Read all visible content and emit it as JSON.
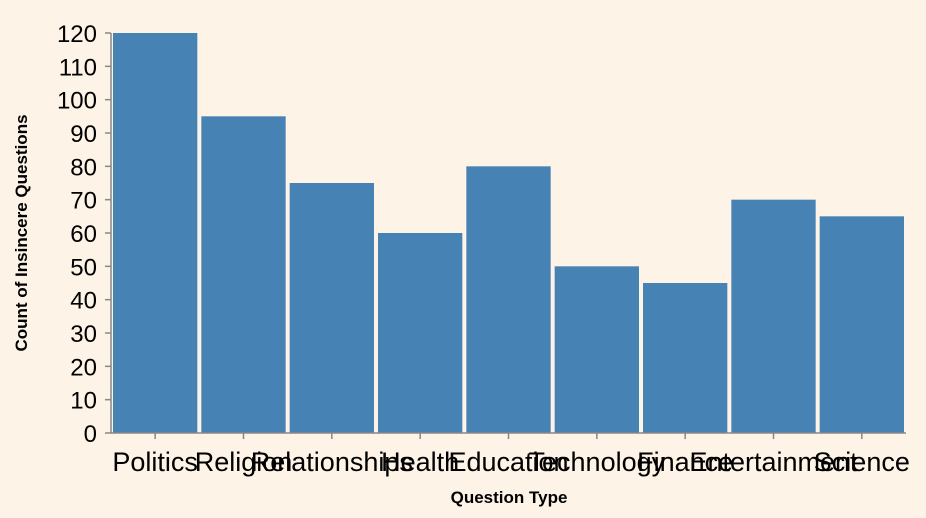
{
  "colors": {
    "background": "#fdf3e6",
    "bar": "#4682b4",
    "axis": "#888888"
  },
  "chart_data": {
    "type": "bar",
    "title": "",
    "xlabel": "Question Type",
    "ylabel": "Count of Insincere Questions",
    "categories": [
      "Politics",
      "Religion",
      "Relationships",
      "Health",
      "Education",
      "Technology",
      "Finance",
      "Entertainment",
      "Science"
    ],
    "values": [
      120,
      95,
      75,
      60,
      80,
      50,
      45,
      70,
      65
    ],
    "ylim": [
      0,
      120
    ],
    "yticks": [
      0,
      10,
      20,
      30,
      40,
      50,
      60,
      70,
      80,
      90,
      100,
      110,
      120
    ],
    "grid": false,
    "legend": "none"
  }
}
